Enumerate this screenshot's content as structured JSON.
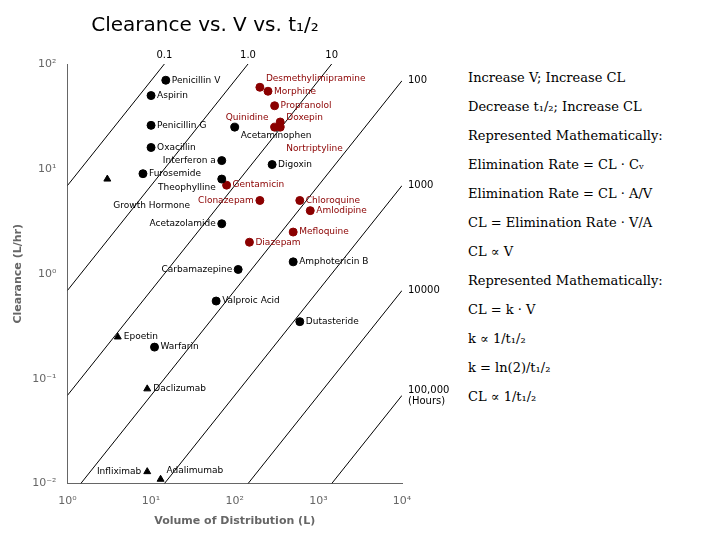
{
  "chart_data": {
    "type": "scatter",
    "title": "Clearance vs. V vs. t₁/₂",
    "xlabel": "Volume of Distribution (L)",
    "ylabel": "Clearance (L/hr)",
    "log": true,
    "grid": false,
    "xlim": [
      1,
      10000
    ],
    "ylim": [
      0.01,
      100
    ],
    "xticks": [
      {
        "value": 1,
        "label": "10⁰"
      },
      {
        "value": 10,
        "label": "10¹"
      },
      {
        "value": 100,
        "label": "10²"
      },
      {
        "value": 1000,
        "label": "10³"
      },
      {
        "value": 10000,
        "label": "10⁴"
      }
    ],
    "yticks": [
      {
        "value": 0.01,
        "label": "10⁻²"
      },
      {
        "value": 0.1,
        "label": "10⁻¹"
      },
      {
        "value": 1,
        "label": "10⁰"
      },
      {
        "value": 10,
        "label": "10¹"
      },
      {
        "value": 100,
        "label": "10²"
      }
    ],
    "series": [
      {
        "name": "0.1",
        "type": "line",
        "color": "#000000",
        "x": [
          1,
          14.43001443
        ],
        "values": [
          6.93,
          100
        ]
      },
      {
        "name": "1.0",
        "type": "line",
        "color": "#000000",
        "x": [
          1,
          144.3001443
        ],
        "values": [
          0.693,
          100
        ]
      },
      {
        "name": "10",
        "type": "line",
        "color": "#000000",
        "x": [
          1,
          1443.001443
        ],
        "values": [
          0.0693,
          100
        ]
      },
      {
        "name": "100",
        "type": "line",
        "color": "#000000",
        "x": [
          1.443001443,
          10000
        ],
        "values": [
          0.01,
          69.3
        ]
      },
      {
        "name": "1000",
        "type": "line",
        "color": "#000000",
        "x": [
          14.43001443,
          10000
        ],
        "values": [
          0.01,
          6.93
        ]
      },
      {
        "name": "10000",
        "type": "line",
        "color": "#000000",
        "x": [
          144.3001443,
          10000
        ],
        "values": [
          0.01,
          0.693
        ]
      },
      {
        "name": "100,000\n(Hours)",
        "type": "line",
        "color": "#000000",
        "x": [
          1443.001443,
          10000
        ],
        "values": [
          0.01,
          0.0693
        ]
      },
      {
        "type": "scatter",
        "marker": "circle",
        "color": "#000000",
        "x": [
          10,
          10,
          10,
          8,
          15,
          100,
          70,
          70,
          70,
          60,
          11,
          500,
          600,
          280,
          110
        ],
        "values": [
          50,
          26,
          16,
          9,
          70,
          25,
          8,
          3,
          12,
          0.55,
          0.2,
          1.3,
          0.35,
          11,
          1.1
        ],
        "labels": [
          "Aspirin",
          "Penicillin G",
          "Oxacillin",
          "Furosemide",
          "Penicillin V",
          "Acetaminophen",
          "Theophylline",
          "Acetazolamide",
          "Interferon a",
          "Valproic Acid",
          "Warfarin",
          "Amphotericin B",
          "Dutasteride",
          "Digoxin",
          "Carbamazepine"
        ]
      },
      {
        "type": "scatter",
        "marker": "triangle",
        "color": "#000000",
        "x": [
          3,
          4,
          9,
          9,
          13
        ],
        "values": [
          8,
          0.25,
          0.08,
          0.013,
          0.011
        ],
        "labels": [
          "Growth Hormone",
          "Epoetin",
          "Daclizumab",
          "Infliximab",
          "Adalimumab"
        ]
      },
      {
        "type": "scatter",
        "marker": "circle",
        "color": "#8B0000",
        "x": [
          200,
          250,
          300,
          300,
          200,
          80,
          150,
          600,
          800,
          500,
          350,
          350
        ],
        "values": [
          60,
          55,
          40,
          25,
          5,
          7,
          2,
          5,
          4,
          2.5,
          25,
          28
        ],
        "labels": [
          "Desmethylimipramine",
          "Morphine",
          "Propranolol",
          "Quinidine",
          "Clonazepam",
          "Gentamicin",
          "Diazepam",
          "Chloroquine",
          "Amlodipine",
          "Mefloquine",
          "Doxepin",
          "Nortriptyline"
        ]
      }
    ],
    "annotations": [
      "Increase V; Increase CL",
      "Decrease t₁/₂; Increase CL",
      "Represented Mathematically:",
      "Elimination Rate = CL · Cᵥ",
      "Elimination Rate = CL · A/V",
      "CL = Elimination Rate · V/A",
      "CL ∝ V",
      "Represented Mathematically:",
      "CL = k · V",
      "k ∝ 1/t₁/₂",
      "k = ln(2)/t₁/₂",
      "CL ∝ 1/t₁/₂"
    ]
  }
}
